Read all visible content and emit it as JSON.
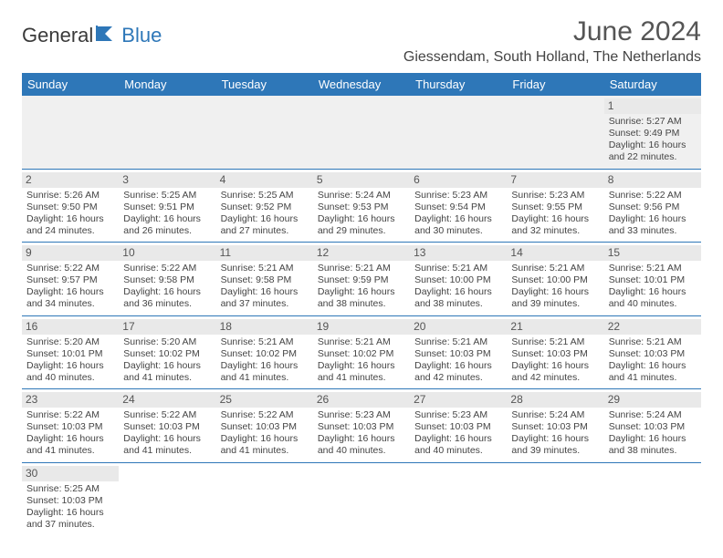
{
  "logo": {
    "text1": "General",
    "text2": "Blue"
  },
  "title": "June 2024",
  "location": "Giessendam, South Holland, The Netherlands",
  "day_headers": [
    "Sunday",
    "Monday",
    "Tuesday",
    "Wednesday",
    "Thursday",
    "Friday",
    "Saturday"
  ],
  "colors": {
    "header_bg": "#2e77b8",
    "header_text": "#ffffff",
    "daynum_bg": "#e9e9e9",
    "first_week_bg": "#f0f0f0",
    "border": "#2e77b8"
  },
  "weeks": [
    [
      null,
      null,
      null,
      null,
      null,
      null,
      {
        "n": "1",
        "sr": "Sunrise: 5:27 AM",
        "ss": "Sunset: 9:49 PM",
        "dl1": "Daylight: 16 hours",
        "dl2": "and 22 minutes."
      }
    ],
    [
      {
        "n": "2",
        "sr": "Sunrise: 5:26 AM",
        "ss": "Sunset: 9:50 PM",
        "dl1": "Daylight: 16 hours",
        "dl2": "and 24 minutes."
      },
      {
        "n": "3",
        "sr": "Sunrise: 5:25 AM",
        "ss": "Sunset: 9:51 PM",
        "dl1": "Daylight: 16 hours",
        "dl2": "and 26 minutes."
      },
      {
        "n": "4",
        "sr": "Sunrise: 5:25 AM",
        "ss": "Sunset: 9:52 PM",
        "dl1": "Daylight: 16 hours",
        "dl2": "and 27 minutes."
      },
      {
        "n": "5",
        "sr": "Sunrise: 5:24 AM",
        "ss": "Sunset: 9:53 PM",
        "dl1": "Daylight: 16 hours",
        "dl2": "and 29 minutes."
      },
      {
        "n": "6",
        "sr": "Sunrise: 5:23 AM",
        "ss": "Sunset: 9:54 PM",
        "dl1": "Daylight: 16 hours",
        "dl2": "and 30 minutes."
      },
      {
        "n": "7",
        "sr": "Sunrise: 5:23 AM",
        "ss": "Sunset: 9:55 PM",
        "dl1": "Daylight: 16 hours",
        "dl2": "and 32 minutes."
      },
      {
        "n": "8",
        "sr": "Sunrise: 5:22 AM",
        "ss": "Sunset: 9:56 PM",
        "dl1": "Daylight: 16 hours",
        "dl2": "and 33 minutes."
      }
    ],
    [
      {
        "n": "9",
        "sr": "Sunrise: 5:22 AM",
        "ss": "Sunset: 9:57 PM",
        "dl1": "Daylight: 16 hours",
        "dl2": "and 34 minutes."
      },
      {
        "n": "10",
        "sr": "Sunrise: 5:22 AM",
        "ss": "Sunset: 9:58 PM",
        "dl1": "Daylight: 16 hours",
        "dl2": "and 36 minutes."
      },
      {
        "n": "11",
        "sr": "Sunrise: 5:21 AM",
        "ss": "Sunset: 9:58 PM",
        "dl1": "Daylight: 16 hours",
        "dl2": "and 37 minutes."
      },
      {
        "n": "12",
        "sr": "Sunrise: 5:21 AM",
        "ss": "Sunset: 9:59 PM",
        "dl1": "Daylight: 16 hours",
        "dl2": "and 38 minutes."
      },
      {
        "n": "13",
        "sr": "Sunrise: 5:21 AM",
        "ss": "Sunset: 10:00 PM",
        "dl1": "Daylight: 16 hours",
        "dl2": "and 38 minutes."
      },
      {
        "n": "14",
        "sr": "Sunrise: 5:21 AM",
        "ss": "Sunset: 10:00 PM",
        "dl1": "Daylight: 16 hours",
        "dl2": "and 39 minutes."
      },
      {
        "n": "15",
        "sr": "Sunrise: 5:21 AM",
        "ss": "Sunset: 10:01 PM",
        "dl1": "Daylight: 16 hours",
        "dl2": "and 40 minutes."
      }
    ],
    [
      {
        "n": "16",
        "sr": "Sunrise: 5:20 AM",
        "ss": "Sunset: 10:01 PM",
        "dl1": "Daylight: 16 hours",
        "dl2": "and 40 minutes."
      },
      {
        "n": "17",
        "sr": "Sunrise: 5:20 AM",
        "ss": "Sunset: 10:02 PM",
        "dl1": "Daylight: 16 hours",
        "dl2": "and 41 minutes."
      },
      {
        "n": "18",
        "sr": "Sunrise: 5:21 AM",
        "ss": "Sunset: 10:02 PM",
        "dl1": "Daylight: 16 hours",
        "dl2": "and 41 minutes."
      },
      {
        "n": "19",
        "sr": "Sunrise: 5:21 AM",
        "ss": "Sunset: 10:02 PM",
        "dl1": "Daylight: 16 hours",
        "dl2": "and 41 minutes."
      },
      {
        "n": "20",
        "sr": "Sunrise: 5:21 AM",
        "ss": "Sunset: 10:03 PM",
        "dl1": "Daylight: 16 hours",
        "dl2": "and 42 minutes."
      },
      {
        "n": "21",
        "sr": "Sunrise: 5:21 AM",
        "ss": "Sunset: 10:03 PM",
        "dl1": "Daylight: 16 hours",
        "dl2": "and 42 minutes."
      },
      {
        "n": "22",
        "sr": "Sunrise: 5:21 AM",
        "ss": "Sunset: 10:03 PM",
        "dl1": "Daylight: 16 hours",
        "dl2": "and 41 minutes."
      }
    ],
    [
      {
        "n": "23",
        "sr": "Sunrise: 5:22 AM",
        "ss": "Sunset: 10:03 PM",
        "dl1": "Daylight: 16 hours",
        "dl2": "and 41 minutes."
      },
      {
        "n": "24",
        "sr": "Sunrise: 5:22 AM",
        "ss": "Sunset: 10:03 PM",
        "dl1": "Daylight: 16 hours",
        "dl2": "and 41 minutes."
      },
      {
        "n": "25",
        "sr": "Sunrise: 5:22 AM",
        "ss": "Sunset: 10:03 PM",
        "dl1": "Daylight: 16 hours",
        "dl2": "and 41 minutes."
      },
      {
        "n": "26",
        "sr": "Sunrise: 5:23 AM",
        "ss": "Sunset: 10:03 PM",
        "dl1": "Daylight: 16 hours",
        "dl2": "and 40 minutes."
      },
      {
        "n": "27",
        "sr": "Sunrise: 5:23 AM",
        "ss": "Sunset: 10:03 PM",
        "dl1": "Daylight: 16 hours",
        "dl2": "and 40 minutes."
      },
      {
        "n": "28",
        "sr": "Sunrise: 5:24 AM",
        "ss": "Sunset: 10:03 PM",
        "dl1": "Daylight: 16 hours",
        "dl2": "and 39 minutes."
      },
      {
        "n": "29",
        "sr": "Sunrise: 5:24 AM",
        "ss": "Sunset: 10:03 PM",
        "dl1": "Daylight: 16 hours",
        "dl2": "and 38 minutes."
      }
    ],
    [
      {
        "n": "30",
        "sr": "Sunrise: 5:25 AM",
        "ss": "Sunset: 10:03 PM",
        "dl1": "Daylight: 16 hours",
        "dl2": "and 37 minutes."
      },
      null,
      null,
      null,
      null,
      null,
      null
    ]
  ]
}
